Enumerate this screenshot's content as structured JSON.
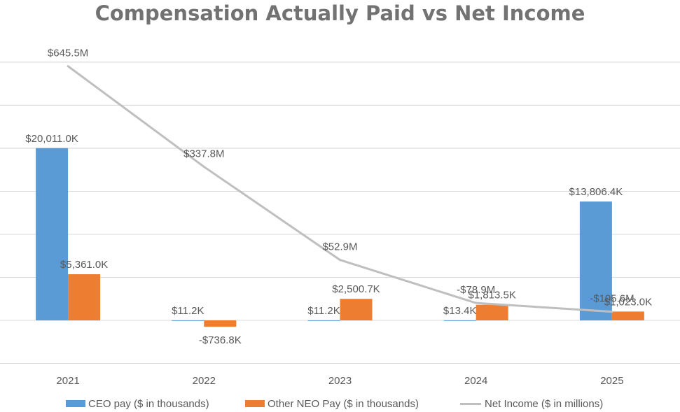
{
  "chart_data": {
    "type": "bar",
    "title": "Compensation Actually Paid vs Net Income",
    "categories": [
      "2021",
      "2022",
      "2023",
      "2024",
      "2025"
    ],
    "series": [
      {
        "name": "CEO pay ($ in thousands)",
        "kind": "bar",
        "color": "#5B9BD5",
        "values": [
          20011.0,
          11.2,
          11.2,
          13.4,
          13806.4
        ],
        "labels": [
          "$20,011.0K",
          "$11.2K",
          "$11.2K",
          "$13.4K",
          "$13,806.4K"
        ]
      },
      {
        "name": "Other NEO Pay ($ in thousands)",
        "kind": "bar",
        "color": "#ED7D31",
        "values": [
          5361.0,
          -736.8,
          2500.7,
          1813.5,
          1023.0
        ],
        "labels": [
          "$5,361.0K",
          "-$736.8K",
          "$2,500.7K",
          "$1,813.5K",
          "$1,023.0K"
        ]
      },
      {
        "name": "Net Income ($ in millions)",
        "kind": "line",
        "color": "#BFBFBF",
        "values": [
          645.5,
          337.8,
          52.9,
          -78.9,
          -105.6
        ],
        "labels": [
          "$645.5M",
          "$337.8M",
          "$52.9M",
          "-$78.9M",
          "-$105.6M"
        ]
      }
    ],
    "ylim": [
      -7500,
      45000
    ],
    "grid": true,
    "legend": "bottom"
  }
}
